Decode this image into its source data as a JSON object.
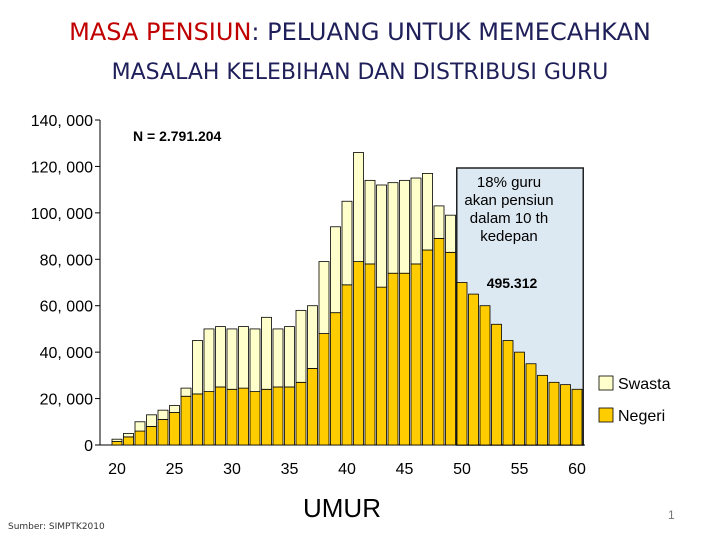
{
  "title": {
    "highlight": "MASA PENSIUN",
    "rest": ": PELUANG UNTUK MEMECAHKAN",
    "line2": "MASALAH KELEBIHAN DAN DISTRIBUSI GURU"
  },
  "source": "Sumber: SIMPTK2010",
  "page_number": "1",
  "colors": {
    "negeri": "#ffcc00",
    "swasta": "#ffffcc",
    "highlight_box": "#dde9f2",
    "title_red": "#c00000",
    "title_navy": "#1f1f5a"
  },
  "chart_data": {
    "type": "bar",
    "stacked": true,
    "xlabel": "UMUR",
    "ylabel": "",
    "ylim": [
      0,
      140000
    ],
    "y_ticks": [
      0,
      20000,
      40000,
      60000,
      80000,
      100000,
      120000,
      140000
    ],
    "y_tick_labels": [
      "0",
      "20, 000",
      "40, 000",
      "60, 000",
      "80, 000",
      "100, 000",
      "120, 000",
      "140, 000"
    ],
    "x_tick_labels": [
      "20",
      "25",
      "30",
      "35",
      "40",
      "45",
      "50",
      "55",
      "60"
    ],
    "categories": [
      20,
      21,
      22,
      23,
      24,
      25,
      26,
      27,
      28,
      29,
      30,
      31,
      32,
      33,
      34,
      35,
      36,
      37,
      38,
      39,
      40,
      41,
      42,
      43,
      44,
      45,
      46,
      47,
      48,
      49,
      50,
      51,
      52,
      53,
      54,
      55,
      56,
      57,
      58,
      59,
      60
    ],
    "series": [
      {
        "name": "Negeri",
        "values": [
          1500,
          3500,
          6000,
          8000,
          11000,
          14000,
          21000,
          22000,
          23000,
          25000,
          24000,
          24500,
          23000,
          24000,
          25000,
          25000,
          27000,
          33000,
          48000,
          57000,
          69000,
          79000,
          78000,
          68000,
          74000,
          74000,
          78000,
          84000,
          89000,
          83000,
          70000,
          65000,
          60000,
          52000,
          45000,
          40000,
          35000,
          30000,
          27000,
          26000,
          24000
        ]
      },
      {
        "name": "Swasta",
        "values": [
          1000,
          1500,
          4000,
          5000,
          4000,
          3000,
          3500,
          23000,
          27000,
          26000,
          26000,
          26500,
          27000,
          31000,
          25000,
          26000,
          31000,
          27000,
          31000,
          37000,
          36000,
          47000,
          36000,
          44000,
          39000,
          40000,
          37000,
          33000,
          14000,
          16000,
          0,
          0,
          0,
          0,
          0,
          0,
          0,
          0,
          0,
          0,
          0
        ]
      }
    ],
    "annotations": {
      "n_label": "N = 2.791.204",
      "box_text": [
        "18% guru",
        "akan pensiun",
        "dalam 10 th",
        "kedepan"
      ],
      "box_value": "495.312"
    },
    "legend": [
      "Swasta",
      "Negeri"
    ],
    "legend_position": "right",
    "grid": false
  }
}
